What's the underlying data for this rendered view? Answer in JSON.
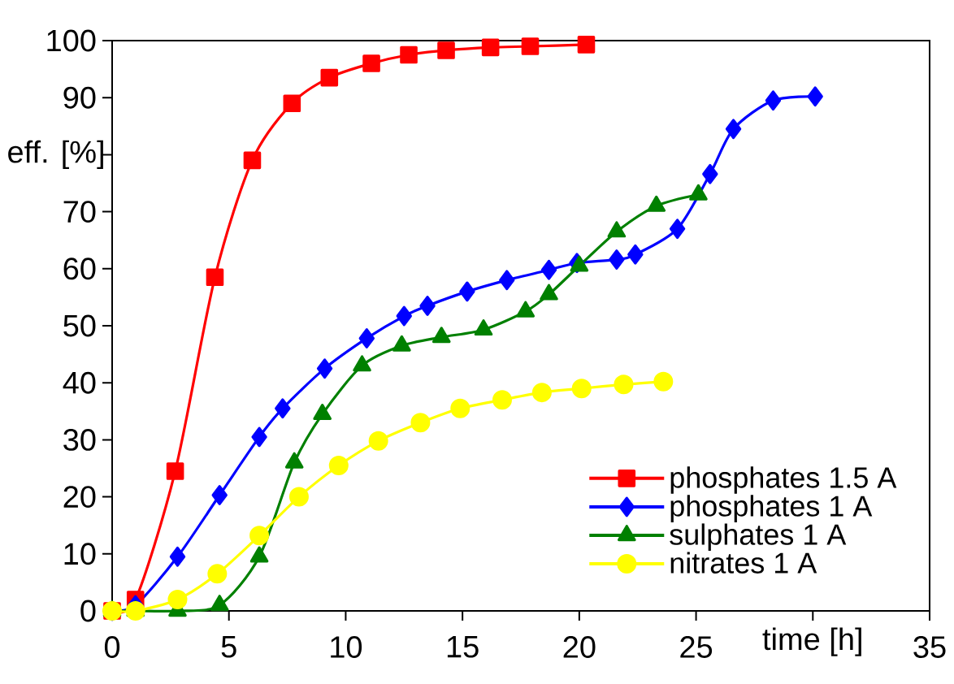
{
  "chart_data": {
    "type": "line",
    "xlabel": "time [h]",
    "ylabel": "eff. [%]",
    "xlim": [
      0,
      35
    ],
    "ylim": [
      0,
      100
    ],
    "xticks": [
      0,
      5,
      10,
      15,
      20,
      25,
      {
        "value": 30,
        "label": null
      },
      35
    ],
    "yticks": [
      0,
      10,
      20,
      30,
      40,
      50,
      60,
      70,
      {
        "value": 80,
        "label": null
      },
      90,
      100
    ],
    "grid": false,
    "legend": "bottom right",
    "series": [
      {
        "name": "phosphates 1.5 A",
        "color": "#ff0000",
        "marker": "square",
        "x": [
          0,
          1,
          2.7,
          4.4,
          6.0,
          7.7,
          9.3,
          11.1,
          12.7,
          14.3,
          16.2,
          17.9,
          20.3
        ],
        "values": [
          0,
          2,
          24.5,
          58.5,
          79,
          89,
          93.5,
          96,
          97.5,
          98.3,
          98.8,
          99,
          99.3
        ]
      },
      {
        "name": "phosphates 1 A",
        "color": "#0000ff",
        "marker": "diamond",
        "x": [
          0,
          1,
          2.8,
          4.6,
          6.3,
          7.3,
          9.1,
          10.9,
          12.5,
          13.5,
          15.2,
          16.9,
          18.7,
          19.9,
          21.6,
          22.4,
          24.2,
          25.6,
          26.6,
          28.3,
          30.1
        ],
        "values": [
          0,
          1,
          9.5,
          20.3,
          30.5,
          35.5,
          42.5,
          47.8,
          51.7,
          53.5,
          56,
          58,
          59.8,
          61,
          61.6,
          62.5,
          67,
          76.6,
          84.5,
          89.5,
          90.2
        ]
      },
      {
        "name": "sulphates 1 A",
        "color": "#008000",
        "marker": "triangle",
        "x": [
          0,
          1,
          2.8,
          4.6,
          6.3,
          7.8,
          9.0,
          10.7,
          12.4,
          14.1,
          15.9,
          17.7,
          18.7,
          20.0,
          21.6,
          23.3,
          25.1
        ],
        "values": [
          0,
          0,
          0,
          1,
          9.5,
          26,
          34.5,
          43,
          46.5,
          48,
          49.3,
          52.5,
          55.5,
          60.5,
          66.5,
          71,
          73
        ]
      },
      {
        "name": "nitrates 1 A",
        "color": "#ffff00",
        "marker": "circle",
        "x": [
          0,
          1,
          2.8,
          4.5,
          6.3,
          8.0,
          9.7,
          11.4,
          13.2,
          14.9,
          16.7,
          18.4,
          20.1,
          21.9,
          23.6
        ],
        "values": [
          0,
          0,
          2,
          6.5,
          13.2,
          20,
          25.5,
          29.8,
          33,
          35.5,
          37,
          38.3,
          39,
          39.7,
          40.2
        ]
      }
    ]
  }
}
